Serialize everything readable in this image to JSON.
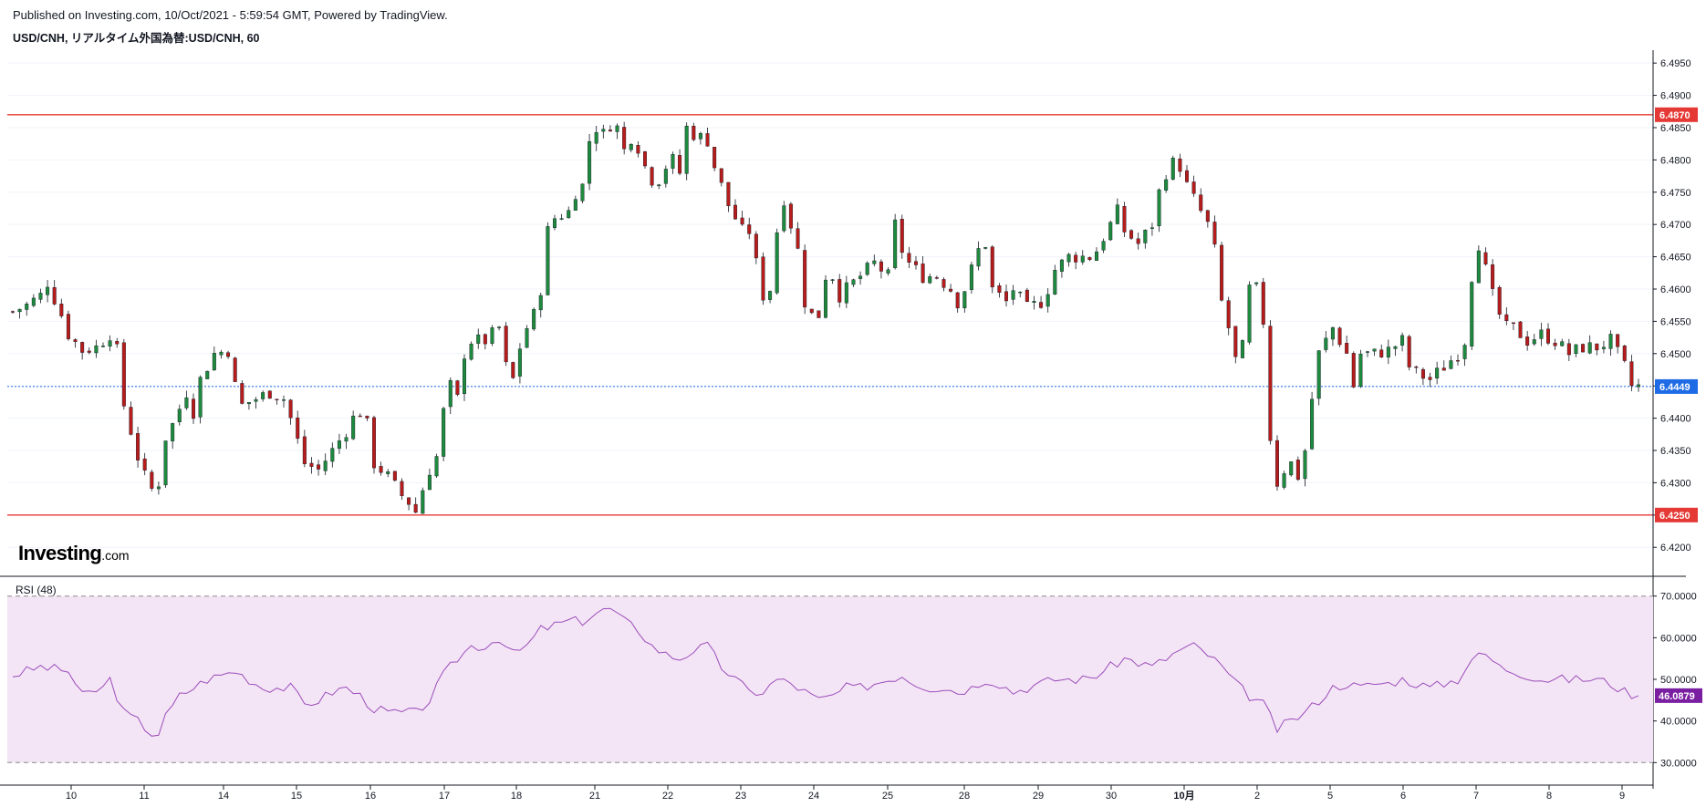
{
  "header": {
    "published": "Published on Investing.com, 10/Oct/2021 - 5:59:54 GMT, Powered by TradingView.",
    "symbol": "USD/CNH, リアルタイム外国為替:USD/CNH, 60"
  },
  "logo": {
    "main": "Investing",
    "suffix": ".com"
  },
  "rsi_label": "RSI (48)",
  "colors": {
    "up": "#26a69a",
    "up_body": "#1e8a3e",
    "down": "#b71c1c",
    "level_line": "#e53935",
    "last_price": "#1e6be5",
    "rsi_line": "#9c4dbb",
    "rsi_band": "#f3e5f5",
    "rsi_badge": "#7b1fa2"
  },
  "chart_data": [
    {
      "type": "candlestick",
      "y_range": [
        6.4165,
        6.497
      ],
      "y_ticks": [
        "6.4200",
        "6.4250",
        "6.4300",
        "6.4350",
        "6.4400",
        "6.4450",
        "6.4500",
        "6.4550",
        "6.4600",
        "6.4650",
        "6.4700",
        "6.4750",
        "6.4800",
        "6.4850",
        "6.4900",
        "6.4950"
      ],
      "x_ticks": [
        "10",
        "11",
        "14",
        "15",
        "16",
        "17",
        "18",
        "21",
        "22",
        "23",
        "24",
        "25",
        "28",
        "29",
        "30",
        "10月",
        "2",
        "5",
        "6",
        "7",
        "8",
        "9"
      ],
      "levels": [
        {
          "value": 6.487,
          "label": "6.4870"
        },
        {
          "value": 6.425,
          "label": "6.4250"
        }
      ],
      "last_price": {
        "value": 6.4449,
        "label": "6.4449"
      },
      "close_path": [
        [
          0,
          6.4565
        ],
        [
          2,
          6.4575
        ],
        [
          4,
          6.459
        ],
        [
          5,
          6.461
        ],
        [
          7,
          6.456
        ],
        [
          8,
          6.453
        ],
        [
          10,
          6.4505
        ],
        [
          12,
          6.451
        ],
        [
          14,
          6.453
        ],
        [
          15,
          6.4505
        ],
        [
          16,
          6.442
        ],
        [
          17,
          6.438
        ],
        [
          18,
          6.434
        ],
        [
          19,
          6.431
        ],
        [
          20,
          6.429
        ],
        [
          21,
          6.43
        ],
        [
          22,
          6.437
        ],
        [
          23,
          6.439
        ],
        [
          25,
          6.444
        ],
        [
          26,
          6.441
        ],
        [
          27,
          6.446
        ],
        [
          29,
          6.45
        ],
        [
          31,
          6.4505
        ],
        [
          32,
          6.445
        ],
        [
          33,
          6.442
        ],
        [
          35,
          6.443
        ],
        [
          37,
          6.444
        ],
        [
          39,
          6.443
        ],
        [
          40,
          6.44
        ],
        [
          42,
          6.433
        ],
        [
          44,
          6.432
        ],
        [
          46,
          6.435
        ],
        [
          48,
          6.438
        ],
        [
          49,
          6.44
        ],
        [
          50,
          6.441
        ],
        [
          51,
          6.439
        ],
        [
          52,
          6.433
        ],
        [
          54,
          6.431
        ],
        [
          56,
          6.428
        ],
        [
          57,
          6.427
        ],
        [
          58,
          6.4255
        ],
        [
          59,
          6.429
        ],
        [
          60,
          6.432
        ],
        [
          61,
          6.434
        ],
        [
          62,
          6.441
        ],
        [
          63,
          6.445
        ],
        [
          64,
          6.443
        ],
        [
          65,
          6.45
        ],
        [
          66,
          6.452
        ],
        [
          68,
          6.452
        ],
        [
          70,
          6.454
        ],
        [
          71,
          6.448
        ],
        [
          72,
          6.446
        ],
        [
          73,
          6.451
        ],
        [
          74,
          6.454
        ],
        [
          75,
          6.456
        ],
        [
          76,
          6.46
        ],
        [
          77,
          6.469
        ],
        [
          78,
          6.471
        ],
        [
          80,
          6.472
        ],
        [
          81,
          6.475
        ],
        [
          82,
          6.476
        ],
        [
          83,
          6.483
        ],
        [
          84,
          6.485
        ],
        [
          85,
          6.484
        ],
        [
          86,
          6.4855
        ],
        [
          87,
          6.485
        ],
        [
          88,
          6.4815
        ],
        [
          89,
          6.4835
        ],
        [
          90,
          6.482
        ],
        [
          91,
          6.479
        ],
        [
          92,
          6.477
        ],
        [
          93,
          6.477
        ],
        [
          94,
          6.479
        ],
        [
          95,
          6.48
        ],
        [
          96,
          6.478
        ],
        [
          97,
          6.485
        ],
        [
          98,
          6.484
        ],
        [
          99,
          6.4835
        ],
        [
          100,
          6.483
        ],
        [
          101,
          6.479
        ],
        [
          102,
          6.476
        ],
        [
          103,
          6.473
        ],
        [
          104,
          6.471
        ],
        [
          105,
          6.469
        ],
        [
          106,
          6.469
        ],
        [
          107,
          6.464
        ],
        [
          108,
          6.459
        ],
        [
          109,
          6.46
        ],
        [
          110,
          6.469
        ],
        [
          111,
          6.474
        ],
        [
          112,
          6.47
        ],
        [
          113,
          6.466
        ],
        [
          114,
          6.458
        ],
        [
          115,
          6.456
        ],
        [
          116,
          6.456
        ],
        [
          117,
          6.462
        ],
        [
          118,
          6.462
        ],
        [
          119,
          6.459
        ],
        [
          120,
          6.46
        ],
        [
          121,
          6.461
        ],
        [
          122,
          6.462
        ],
        [
          124,
          6.464
        ],
        [
          126,
          6.462
        ],
        [
          127,
          6.47
        ],
        [
          128,
          6.466
        ],
        [
          129,
          6.464
        ],
        [
          131,
          6.462
        ],
        [
          133,
          6.462
        ],
        [
          135,
          6.46
        ],
        [
          136,
          6.458
        ],
        [
          137,
          6.46
        ],
        [
          139,
          6.466
        ],
        [
          140,
          6.467
        ],
        [
          141,
          6.46
        ],
        [
          142,
          6.459
        ],
        [
          143,
          6.458
        ],
        [
          144,
          6.46
        ],
        [
          146,
          6.457
        ],
        [
          148,
          6.458
        ],
        [
          149,
          6.46
        ],
        [
          150,
          6.463
        ],
        [
          152,
          6.465
        ],
        [
          154,
          6.465
        ],
        [
          155,
          6.465
        ],
        [
          156,
          6.466
        ],
        [
          158,
          6.47
        ],
        [
          159,
          6.472
        ],
        [
          160,
          6.469
        ],
        [
          161,
          6.468
        ],
        [
          162,
          6.467
        ],
        [
          164,
          6.47
        ],
        [
          165,
          6.475
        ],
        [
          166,
          6.478
        ],
        [
          167,
          6.4795
        ],
        [
          168,
          6.479
        ],
        [
          169,
          6.476
        ],
        [
          170,
          6.474
        ],
        [
          171,
          6.472
        ],
        [
          172,
          6.47
        ],
        [
          173,
          6.466
        ],
        [
          174,
          6.458
        ],
        [
          175,
          6.454
        ],
        [
          176,
          6.449
        ],
        [
          177,
          6.451
        ],
        [
          178,
          6.46
        ],
        [
          179,
          6.46
        ],
        [
          180,
          6.455
        ],
        [
          181,
          6.437
        ],
        [
          182,
          6.43
        ],
        [
          183,
          6.432
        ],
        [
          184,
          6.433
        ],
        [
          185,
          6.431
        ],
        [
          186,
          6.435
        ],
        [
          187,
          6.443
        ],
        [
          188,
          6.45
        ],
        [
          189,
          6.452
        ],
        [
          190,
          6.454
        ],
        [
          191,
          6.452
        ],
        [
          192,
          6.45
        ],
        [
          193,
          6.445
        ],
        [
          194,
          6.45
        ],
        [
          196,
          6.45
        ],
        [
          198,
          6.4505
        ],
        [
          200,
          6.452
        ],
        [
          201,
          6.448
        ],
        [
          202,
          6.447
        ],
        [
          204,
          6.446
        ],
        [
          206,
          6.448
        ],
        [
          208,
          6.45
        ],
        [
          209,
          6.452
        ],
        [
          210,
          6.462
        ],
        [
          211,
          6.467
        ],
        [
          212,
          6.463
        ],
        [
          213,
          6.459
        ],
        [
          214,
          6.456
        ],
        [
          215,
          6.454
        ],
        [
          216,
          6.454
        ],
        [
          218,
          6.452
        ],
        [
          220,
          6.453
        ],
        [
          222,
          6.452
        ],
        [
          224,
          6.45
        ],
        [
          226,
          6.451
        ],
        [
          228,
          6.451
        ],
        [
          230,
          6.452
        ],
        [
          232,
          6.448
        ],
        [
          233,
          6.445
        ],
        [
          234,
          6.4449
        ]
      ]
    },
    {
      "type": "line",
      "name": "RSI (48)",
      "y_range": [
        27,
        73
      ],
      "y_ticks": [
        "30.0000",
        "40.0000",
        "50.0000",
        "60.0000",
        "70.0000"
      ],
      "bands": [
        30,
        70
      ],
      "last_value": {
        "value": 46.0879,
        "label": "46.0879"
      },
      "values": [
        [
          0,
          51
        ],
        [
          4,
          53
        ],
        [
          8,
          52
        ],
        [
          10,
          46
        ],
        [
          13,
          48
        ],
        [
          14,
          50
        ],
        [
          15,
          46
        ],
        [
          16,
          42
        ],
        [
          18,
          40
        ],
        [
          20,
          37
        ],
        [
          21,
          37
        ],
        [
          22,
          41
        ],
        [
          24,
          46
        ],
        [
          26,
          48
        ],
        [
          28,
          50
        ],
        [
          30,
          51
        ],
        [
          32,
          52
        ],
        [
          34,
          50
        ],
        [
          36,
          48
        ],
        [
          38,
          48
        ],
        [
          40,
          48
        ],
        [
          42,
          44
        ],
        [
          44,
          45
        ],
        [
          46,
          47
        ],
        [
          48,
          48
        ],
        [
          50,
          46
        ],
        [
          52,
          43
        ],
        [
          54,
          42
        ],
        [
          56,
          42
        ],
        [
          58,
          42
        ],
        [
          60,
          45
        ],
        [
          62,
          51
        ],
        [
          64,
          55
        ],
        [
          66,
          58
        ],
        [
          68,
          58
        ],
        [
          70,
          60
        ],
        [
          72,
          56
        ],
        [
          74,
          58
        ],
        [
          76,
          62
        ],
        [
          78,
          63
        ],
        [
          80,
          64
        ],
        [
          82,
          64
        ],
        [
          84,
          66
        ],
        [
          86,
          67
        ],
        [
          88,
          64
        ],
        [
          90,
          62
        ],
        [
          92,
          58
        ],
        [
          94,
          56
        ],
        [
          96,
          55
        ],
        [
          98,
          57
        ],
        [
          100,
          58
        ],
        [
          102,
          53
        ],
        [
          104,
          50
        ],
        [
          106,
          47
        ],
        [
          108,
          47
        ],
        [
          110,
          50
        ],
        [
          112,
          49
        ],
        [
          114,
          47
        ],
        [
          116,
          45
        ],
        [
          118,
          46
        ],
        [
          120,
          48
        ],
        [
          122,
          48
        ],
        [
          124,
          49
        ],
        [
          126,
          50
        ],
        [
          128,
          51
        ],
        [
          130,
          49
        ],
        [
          132,
          48
        ],
        [
          134,
          48
        ],
        [
          136,
          47
        ],
        [
          138,
          48
        ],
        [
          140,
          50
        ],
        [
          142,
          49
        ],
        [
          144,
          47
        ],
        [
          146,
          48
        ],
        [
          148,
          49
        ],
        [
          150,
          50
        ],
        [
          152,
          50
        ],
        [
          154,
          50
        ],
        [
          156,
          51
        ],
        [
          158,
          53
        ],
        [
          160,
          55
        ],
        [
          162,
          54
        ],
        [
          164,
          53
        ],
        [
          166,
          55
        ],
        [
          168,
          57
        ],
        [
          170,
          58
        ],
        [
          172,
          56
        ],
        [
          174,
          53
        ],
        [
          176,
          49
        ],
        [
          178,
          46
        ],
        [
          180,
          44
        ],
        [
          182,
          38
        ],
        [
          184,
          40
        ],
        [
          186,
          42
        ],
        [
          188,
          45
        ],
        [
          190,
          48
        ],
        [
          192,
          49
        ],
        [
          194,
          48
        ],
        [
          196,
          49
        ],
        [
          198,
          49
        ],
        [
          200,
          50
        ],
        [
          202,
          49
        ],
        [
          204,
          48
        ],
        [
          206,
          49
        ],
        [
          208,
          50
        ],
        [
          210,
          55
        ],
        [
          212,
          56
        ],
        [
          214,
          53
        ],
        [
          216,
          52
        ],
        [
          218,
          51
        ],
        [
          220,
          50
        ],
        [
          222,
          50
        ],
        [
          224,
          50
        ],
        [
          226,
          50
        ],
        [
          228,
          50
        ],
        [
          230,
          49
        ],
        [
          232,
          47
        ],
        [
          234,
          46.0879
        ]
      ]
    }
  ]
}
